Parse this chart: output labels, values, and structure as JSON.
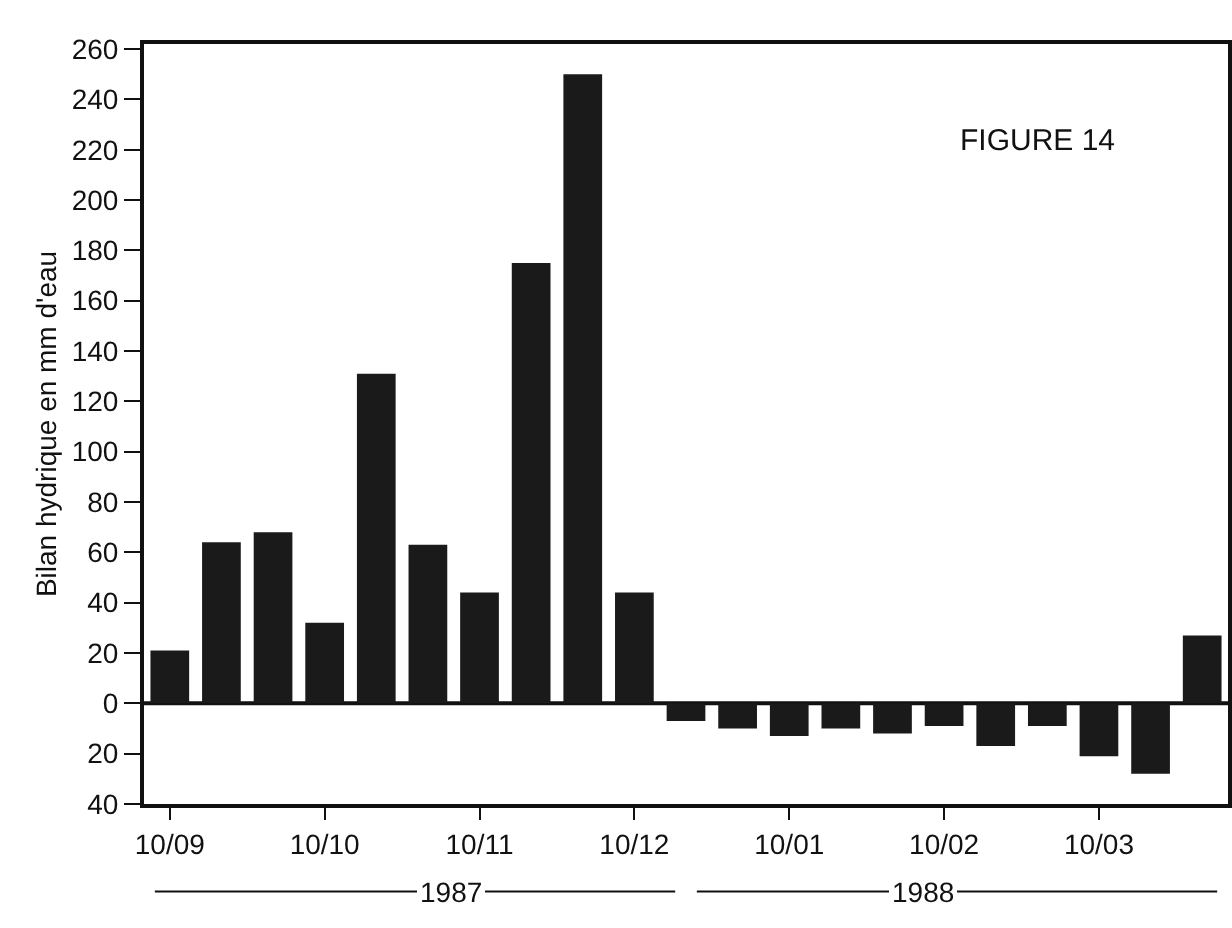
{
  "chart_data": {
    "type": "bar",
    "title": "FIGURE 14",
    "ylabel": "Bilan hydrique en mm d'eau",
    "categories": [
      "10/09",
      null,
      null,
      "10/10",
      null,
      null,
      "10/11",
      null,
      null,
      "10/12",
      null,
      null,
      "10/01",
      null,
      null,
      "10/02",
      null,
      null,
      "10/03",
      null,
      null
    ],
    "values": [
      21,
      64,
      68,
      32,
      131,
      63,
      44,
      175,
      250,
      44,
      -7,
      -10,
      -13,
      -10,
      -12,
      -9,
      -17,
      -9,
      -21,
      -28,
      27
    ],
    "color": "#1a1a1a",
    "ylim": [
      -40,
      262
    ],
    "yticks": [
      {
        "value": -40,
        "label": "40"
      },
      {
        "value": -20,
        "label": "20"
      },
      0,
      20,
      40,
      60,
      80,
      100,
      120,
      140,
      160,
      180,
      200,
      220,
      240,
      260
    ],
    "grid": false,
    "ref_lines": [
      {
        "axis": "y",
        "value": 0
      }
    ],
    "annotations": [
      "1987",
      "1988"
    ]
  }
}
